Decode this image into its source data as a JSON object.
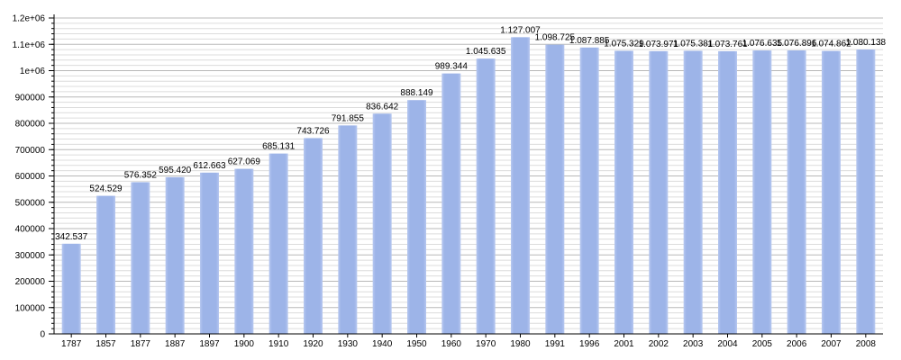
{
  "chart_data": {
    "type": "bar",
    "categories": [
      "1787",
      "1857",
      "1877",
      "1887",
      "1897",
      "1900",
      "1910",
      "1920",
      "1930",
      "1940",
      "1950",
      "1960",
      "1970",
      "1980",
      "1991",
      "1996",
      "2001",
      "2002",
      "2003",
      "2004",
      "2005",
      "2006",
      "2007",
      "2008"
    ],
    "values": [
      342537,
      524529,
      576352,
      595420,
      612663,
      627069,
      685131,
      743726,
      791855,
      836642,
      888149,
      989344,
      1045635,
      1127007,
      1098725,
      1087885,
      1075329,
      1073971,
      1075381,
      1073761,
      1076635,
      1076896,
      1074862,
      1080138
    ],
    "value_labels": [
      "342.537",
      "524.529",
      "576.352",
      "595.420",
      "612.663",
      "627.069",
      "685.131",
      "743.726",
      "791.855",
      "836.642",
      "888.149",
      "989.344",
      "1.045.635",
      "1.127.007",
      "1.098.725",
      "1.087.885",
      "1.075.329",
      "1.073.971",
      "1.075.381",
      "1.073.761",
      "1.076.635",
      "1.076.896",
      "1.074.862",
      "1.080.138"
    ],
    "y_ticks": [
      0,
      100000,
      200000,
      300000,
      400000,
      500000,
      600000,
      700000,
      800000,
      900000,
      1000000,
      1100000,
      1200000
    ],
    "y_tick_labels": [
      "0",
      "100000",
      "200000",
      "300000",
      "400000",
      "500000",
      "600000",
      "700000",
      "800000",
      "900000",
      "1e+06",
      "1.1e+06",
      "1.2e+06"
    ],
    "ylim": [
      0,
      1200000
    ],
    "title": "",
    "xlabel": "",
    "ylabel": "",
    "grid": true,
    "colors": {
      "bar": "#9db4e8",
      "bar_edge": "#8aa5e0",
      "grid": "#c8c8c8"
    }
  }
}
